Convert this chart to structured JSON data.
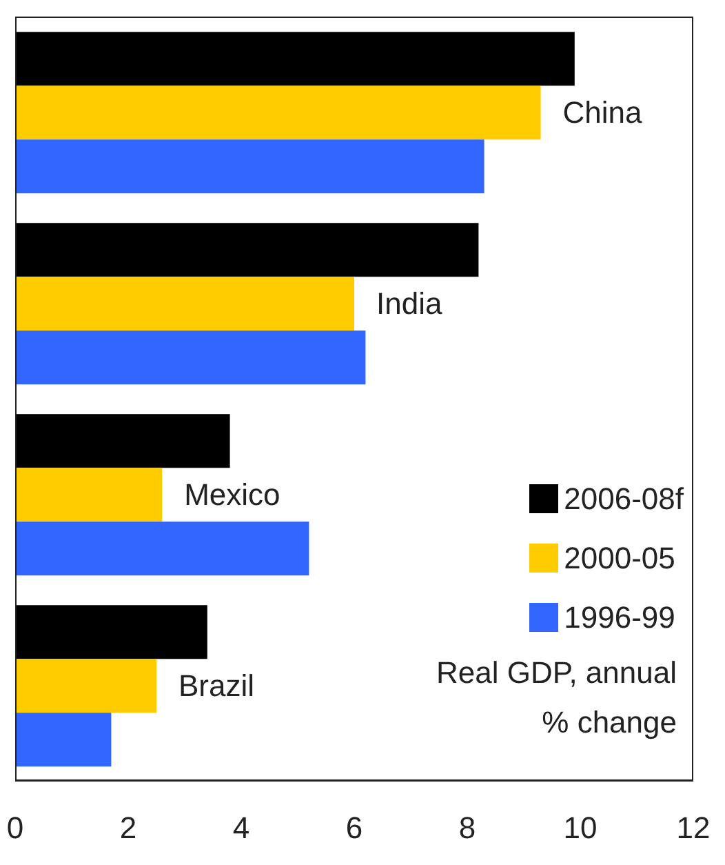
{
  "chart_data": {
    "type": "bar",
    "orientation": "horizontal",
    "categories": [
      "China",
      "India",
      "Mexico",
      "Brazil"
    ],
    "series": [
      {
        "name": "2006-08f",
        "color": "#000000",
        "values": [
          9.9,
          8.2,
          3.8,
          3.4
        ]
      },
      {
        "name": "2000-05",
        "color": "#ffcc00",
        "values": [
          9.3,
          6.0,
          2.6,
          2.5
        ]
      },
      {
        "name": "1996-99",
        "color": "#3366ff",
        "values": [
          8.3,
          6.2,
          5.2,
          1.7
        ]
      }
    ],
    "xlim": [
      0,
      12
    ],
    "xticks": [
      0,
      2,
      4,
      6,
      8,
      10,
      12
    ],
    "tick_labels": "x",
    "grid": false,
    "legend": "right",
    "annotations": [
      "Real GDP, annual % change"
    ]
  }
}
